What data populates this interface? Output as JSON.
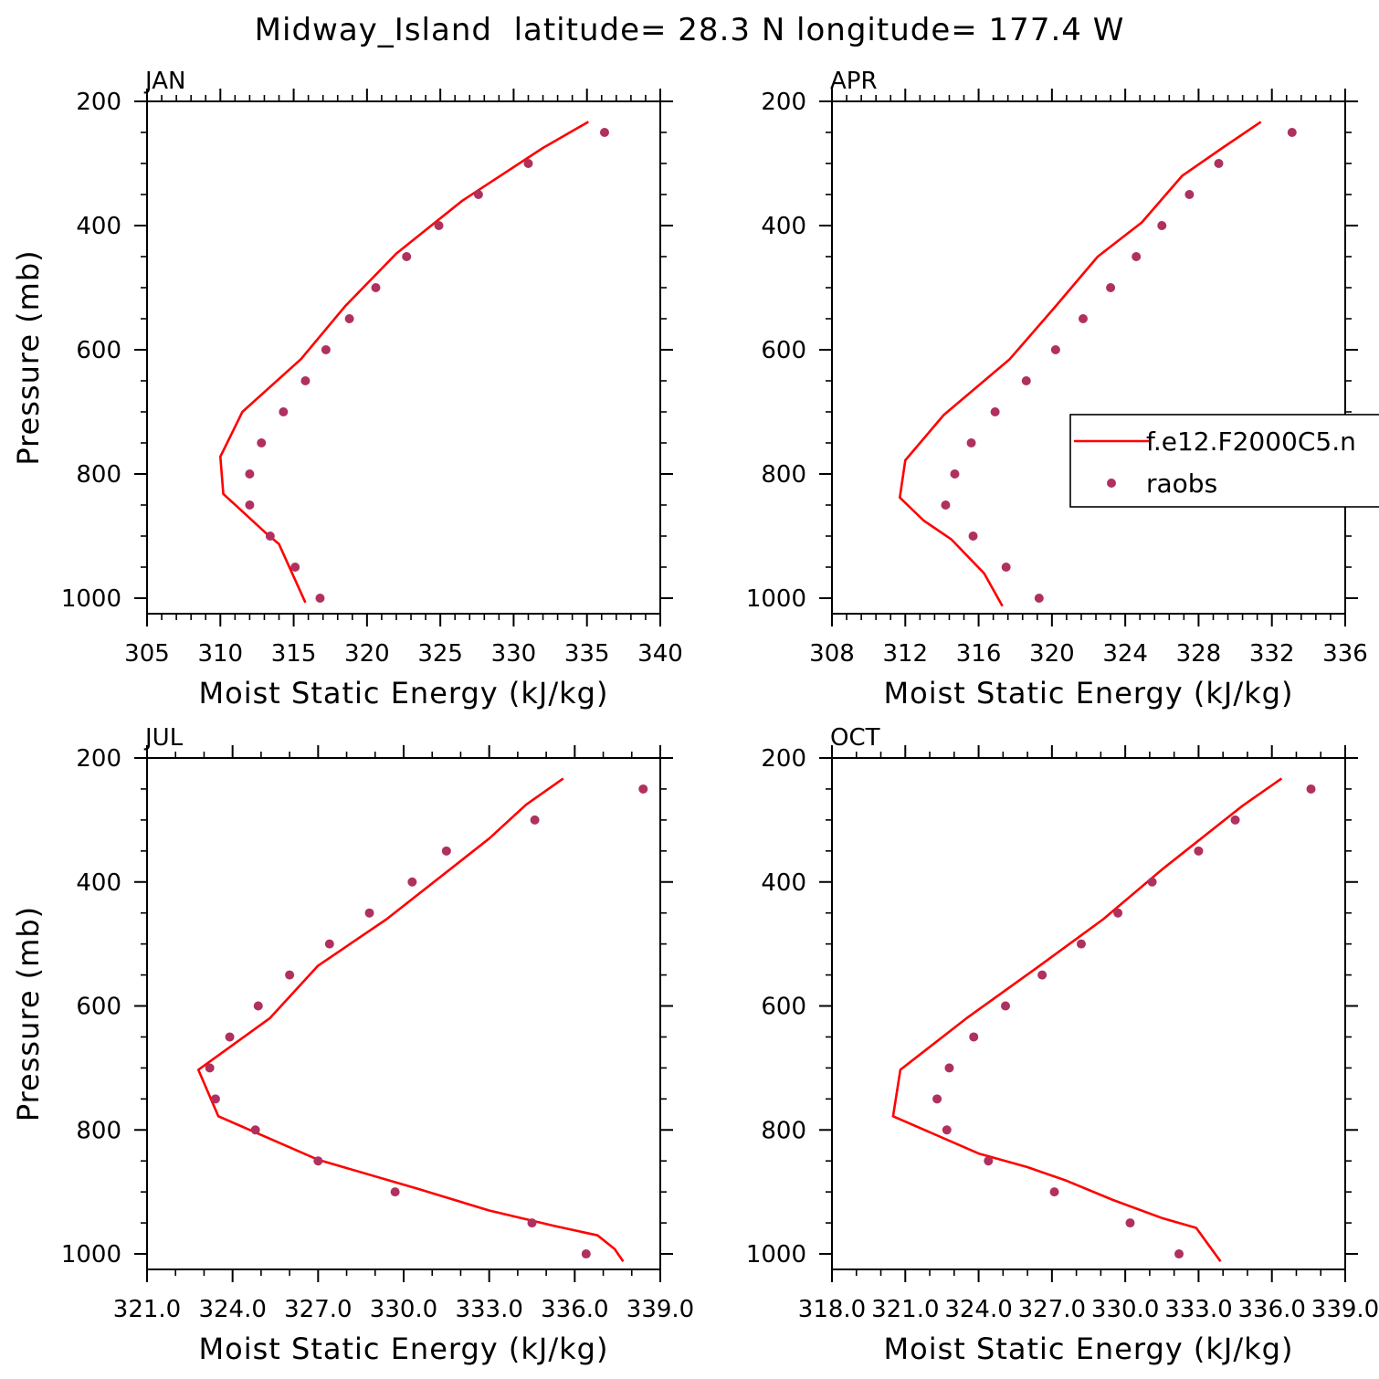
{
  "figure": {
    "title": "Midway_Island  latitude= 28.3 N longitude= 177.4 W"
  },
  "colors": {
    "model": "#ff0000",
    "obs": "#b03060",
    "axes": "#000000",
    "background": "#ffffff"
  },
  "legend": {
    "panel": 1,
    "placement": "right-middle",
    "entries": [
      {
        "label": "f.e12.F2000C5.n",
        "marker": "line",
        "color": "#ff0000"
      },
      {
        "label": "raobs",
        "marker": "dot",
        "color": "#b03060"
      }
    ]
  },
  "chart_data": [
    {
      "type": "line",
      "title": "JAN",
      "xlabel": "Moist Static Energy (kJ/kg)",
      "ylabel": "Pressure (mb)",
      "xlim": [
        305,
        340
      ],
      "ylim": [
        1025,
        200
      ],
      "xticks": [
        "305",
        "310",
        "315",
        "320",
        "325",
        "330",
        "335",
        "340"
      ],
      "yticks": [
        "200",
        "400",
        "600",
        "800",
        "1000"
      ],
      "series": [
        {
          "name": "f.e12.F2000C5.n",
          "kind": "line",
          "points": [
            [
              335.1,
              233
            ],
            [
              332.0,
              275
            ],
            [
              326.5,
              360
            ],
            [
              322.0,
              445
            ],
            [
              318.5,
              530
            ],
            [
              315.5,
              615
            ],
            [
              311.5,
              700
            ],
            [
              310.0,
              772
            ],
            [
              310.2,
              832
            ],
            [
              313.0,
              893
            ],
            [
              314.0,
              913
            ],
            [
              315.8,
              1007
            ]
          ]
        },
        {
          "name": "raobs",
          "kind": "scatter",
          "points": [
            [
              336.2,
              250
            ],
            [
              331.0,
              300
            ],
            [
              327.6,
              350
            ],
            [
              324.9,
              400
            ],
            [
              322.7,
              450
            ],
            [
              320.6,
              500
            ],
            [
              318.8,
              550
            ],
            [
              317.2,
              600
            ],
            [
              315.8,
              650
            ],
            [
              314.3,
              700
            ],
            [
              312.8,
              750
            ],
            [
              312.0,
              800
            ],
            [
              312.0,
              850
            ],
            [
              313.4,
              900
            ],
            [
              315.1,
              950
            ],
            [
              316.8,
              1000
            ]
          ]
        }
      ]
    },
    {
      "type": "line",
      "title": "APR",
      "xlabel": "Moist Static Energy (kJ/kg)",
      "ylabel": "",
      "xlim": [
        308,
        336
      ],
      "ylim": [
        1025,
        200
      ],
      "xticks": [
        "308",
        "312",
        "316",
        "320",
        "324",
        "328",
        "332",
        "336"
      ],
      "yticks": [
        "200",
        "400",
        "600",
        "800",
        "1000"
      ],
      "series": [
        {
          "name": "f.e12.F2000C5.n",
          "kind": "line",
          "points": [
            [
              331.4,
              233
            ],
            [
              329.3,
              275
            ],
            [
              327.1,
              320
            ],
            [
              324.9,
              395
            ],
            [
              322.5,
              450
            ],
            [
              320.2,
              530
            ],
            [
              317.7,
              615
            ],
            [
              314.1,
              705
            ],
            [
              312.0,
              778
            ],
            [
              311.7,
              838
            ],
            [
              313.0,
              875
            ],
            [
              314.5,
              905
            ],
            [
              316.3,
              960
            ],
            [
              317.3,
              1013
            ]
          ]
        },
        {
          "name": "raobs",
          "kind": "scatter",
          "points": [
            [
              333.1,
              250
            ],
            [
              329.1,
              300
            ],
            [
              327.5,
              350
            ],
            [
              326.0,
              400
            ],
            [
              324.6,
              450
            ],
            [
              323.2,
              500
            ],
            [
              321.7,
              550
            ],
            [
              320.2,
              600
            ],
            [
              318.6,
              650
            ],
            [
              316.9,
              700
            ],
            [
              315.6,
              750
            ],
            [
              314.7,
              800
            ],
            [
              314.2,
              850
            ],
            [
              315.7,
              900
            ],
            [
              317.5,
              950
            ],
            [
              319.3,
              1000
            ]
          ]
        }
      ]
    },
    {
      "type": "line",
      "title": "JUL",
      "xlabel": "Moist Static Energy (kJ/kg)",
      "ylabel": "Pressure (mb)",
      "xlim": [
        321.0,
        339.0
      ],
      "ylim": [
        1025,
        200
      ],
      "xticks": [
        "321.0",
        "324.0",
        "327.0",
        "330.0",
        "333.0",
        "336.0",
        "339.0"
      ],
      "yticks": [
        "200",
        "400",
        "600",
        "800",
        "1000"
      ],
      "series": [
        {
          "name": "f.e12.F2000C5.n",
          "kind": "line",
          "points": [
            [
              335.6,
              233
            ],
            [
              334.3,
              275
            ],
            [
              333.0,
              330
            ],
            [
              329.4,
              460
            ],
            [
              327.0,
              535
            ],
            [
              325.3,
              620
            ],
            [
              322.8,
              703
            ],
            [
              323.5,
              778
            ],
            [
              325.7,
              822
            ],
            [
              327.0,
              848
            ],
            [
              330.5,
              895
            ],
            [
              333.0,
              930
            ],
            [
              335.3,
              955
            ],
            [
              336.8,
              970
            ],
            [
              337.4,
              992
            ],
            [
              337.7,
              1012
            ]
          ]
        },
        {
          "name": "raobs",
          "kind": "scatter",
          "points": [
            [
              338.4,
              250
            ],
            [
              334.6,
              300
            ],
            [
              331.5,
              350
            ],
            [
              330.3,
              400
            ],
            [
              328.8,
              450
            ],
            [
              327.4,
              500
            ],
            [
              326.0,
              550
            ],
            [
              324.9,
              600
            ],
            [
              323.9,
              650
            ],
            [
              323.2,
              700
            ],
            [
              323.4,
              750
            ],
            [
              324.8,
              800
            ],
            [
              327.0,
              850
            ],
            [
              329.7,
              900
            ],
            [
              334.5,
              950
            ],
            [
              336.4,
              1000
            ]
          ]
        }
      ]
    },
    {
      "type": "line",
      "title": "OCT",
      "xlabel": "Moist Static Energy (kJ/kg)",
      "ylabel": "",
      "xlim": [
        318.0,
        339.0
      ],
      "ylim": [
        1025,
        200
      ],
      "xticks": [
        "318.0",
        "321.0",
        "324.0",
        "327.0",
        "330.0",
        "333.0",
        "336.0",
        "339.0"
      ],
      "yticks": [
        "200",
        "400",
        "600",
        "800",
        "1000"
      ],
      "series": [
        {
          "name": "f.e12.F2000C5.n",
          "kind": "line",
          "points": [
            [
              336.4,
              233
            ],
            [
              334.8,
              277
            ],
            [
              331.5,
              380
            ],
            [
              329.1,
              460
            ],
            [
              326.5,
              535
            ],
            [
              323.5,
              620
            ],
            [
              320.8,
              703
            ],
            [
              320.5,
              778
            ],
            [
              324.0,
              838
            ],
            [
              326.0,
              860
            ],
            [
              327.6,
              882
            ],
            [
              329.5,
              913
            ],
            [
              331.5,
              942
            ],
            [
              332.9,
              958
            ],
            [
              333.4,
              985
            ],
            [
              333.9,
              1012
            ]
          ]
        },
        {
          "name": "raobs",
          "kind": "scatter",
          "points": [
            [
              337.6,
              250
            ],
            [
              334.5,
              300
            ],
            [
              333.0,
              350
            ],
            [
              331.1,
              400
            ],
            [
              329.7,
              450
            ],
            [
              328.2,
              500
            ],
            [
              326.6,
              550
            ],
            [
              325.1,
              600
            ],
            [
              323.8,
              650
            ],
            [
              322.8,
              700
            ],
            [
              322.3,
              750
            ],
            [
              322.7,
              800
            ],
            [
              324.4,
              850
            ],
            [
              327.1,
              900
            ],
            [
              330.2,
              950
            ],
            [
              332.2,
              1000
            ]
          ]
        }
      ]
    }
  ]
}
